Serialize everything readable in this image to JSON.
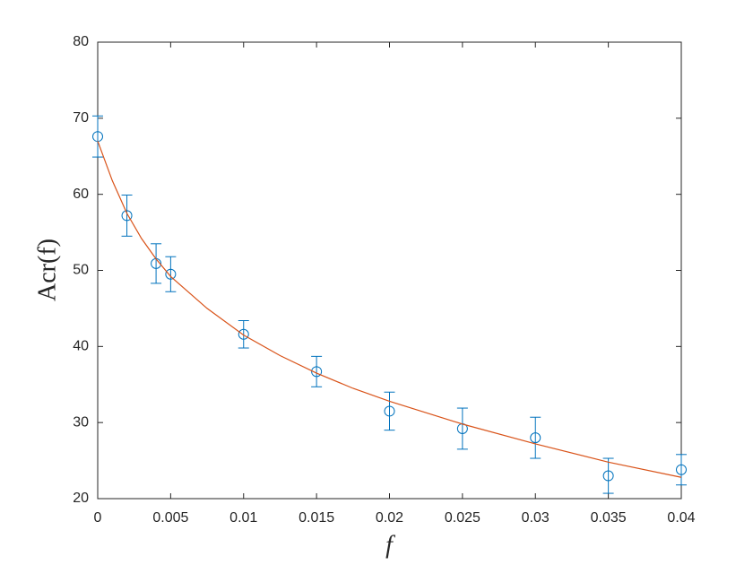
{
  "chart_data": {
    "type": "errorbar",
    "xlabel": "f",
    "ylabel": "Acr(f)",
    "xlim": [
      0,
      0.04
    ],
    "ylim": [
      20,
      80
    ],
    "xticks": [
      0,
      0.005,
      0.01,
      0.015,
      0.02,
      0.025,
      0.03,
      0.035,
      0.04
    ],
    "yticks": [
      20,
      30,
      40,
      50,
      60,
      70,
      80
    ],
    "series": [
      {
        "color": "#0072bd",
        "x": [
          0,
          0.002,
          0.004,
          0.005,
          0.01,
          0.015,
          0.02,
          0.025,
          0.03,
          0.035,
          0.04
        ],
        "values": [
          67.6,
          57.2,
          50.9,
          49.5,
          41.6,
          36.7,
          31.5,
          29.2,
          28.0,
          23.0,
          23.8
        ],
        "errors": [
          2.7,
          2.7,
          2.6,
          2.3,
          1.8,
          2.0,
          2.5,
          2.7,
          2.7,
          2.3,
          2.0
        ]
      },
      {
        "color": "#d95319",
        "x": [
          0,
          0.001,
          0.002,
          0.003,
          0.004,
          0.005,
          0.0075,
          0.01,
          0.0125,
          0.015,
          0.0175,
          0.02,
          0.025,
          0.03,
          0.035,
          0.04
        ],
        "values": [
          67.0,
          61.8,
          57.5,
          54.2,
          51.5,
          49.2,
          45.0,
          41.5,
          38.8,
          36.5,
          34.5,
          32.8,
          29.8,
          27.2,
          24.8,
          22.8
        ]
      }
    ]
  }
}
